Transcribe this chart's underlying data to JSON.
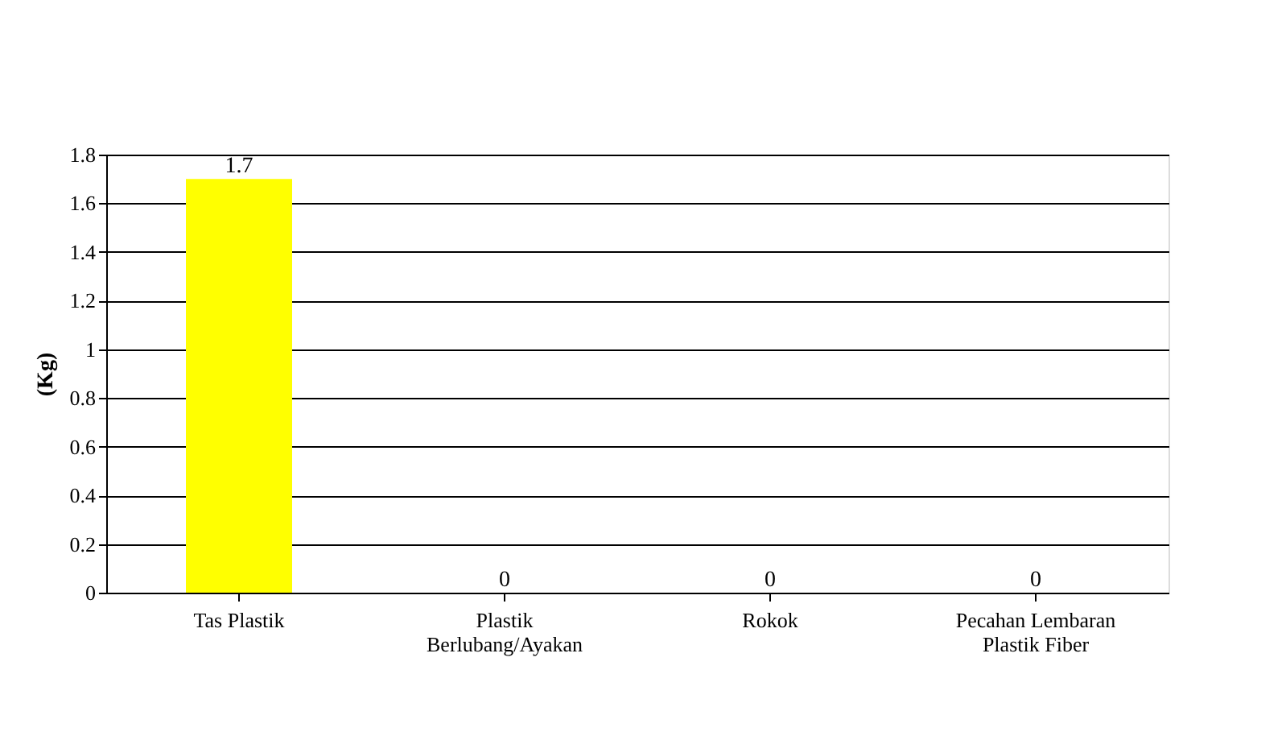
{
  "chart_data": {
    "type": "bar",
    "ylabel": "(Kg)",
    "categories": [
      "Tas Plastik",
      "Plastik Berlubang/Ayakan",
      "Rokok",
      "Pecahan Lembaran Plastik Fiber"
    ],
    "values": [
      1.7,
      0,
      0,
      0
    ],
    "color": "#ffff00",
    "ylim": [
      0,
      1.8
    ],
    "yticks": [
      0,
      0.2,
      0.4,
      0.6,
      0.8,
      1,
      1.2,
      1.4,
      1.6,
      1.8
    ],
    "grid": "y",
    "data_labels": true
  }
}
